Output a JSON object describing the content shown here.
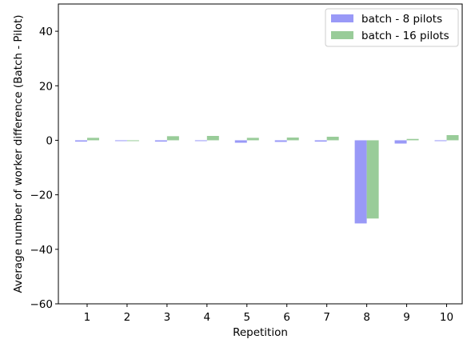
{
  "chart_data": {
    "type": "bar",
    "xlabel": "Repetition",
    "ylabel": "Average number of worker difference (Batch - Pilot)",
    "categories": [
      "1",
      "2",
      "3",
      "4",
      "5",
      "6",
      "7",
      "8",
      "9",
      "10"
    ],
    "series": [
      {
        "name": "batch - 8 pilots",
        "color": "#9999f7",
        "values": [
          -0.5,
          -0.3,
          -0.5,
          -0.3,
          -0.9,
          -0.6,
          -0.5,
          -30.5,
          -1.2,
          -0.3
        ]
      },
      {
        "name": "batch - 16 pilots",
        "color": "#99cc99",
        "values": [
          0.9,
          -0.3,
          1.5,
          1.6,
          0.9,
          1.0,
          1.3,
          -28.7,
          0.5,
          1.9
        ]
      }
    ],
    "ylim": [
      -60,
      50
    ],
    "yticks": [
      -60,
      -40,
      -20,
      0,
      20,
      40
    ],
    "ytick_labels": [
      "−60",
      "−40",
      "−20",
      "0",
      "20",
      "40"
    ],
    "grid": false,
    "legend_position": "top-right"
  }
}
